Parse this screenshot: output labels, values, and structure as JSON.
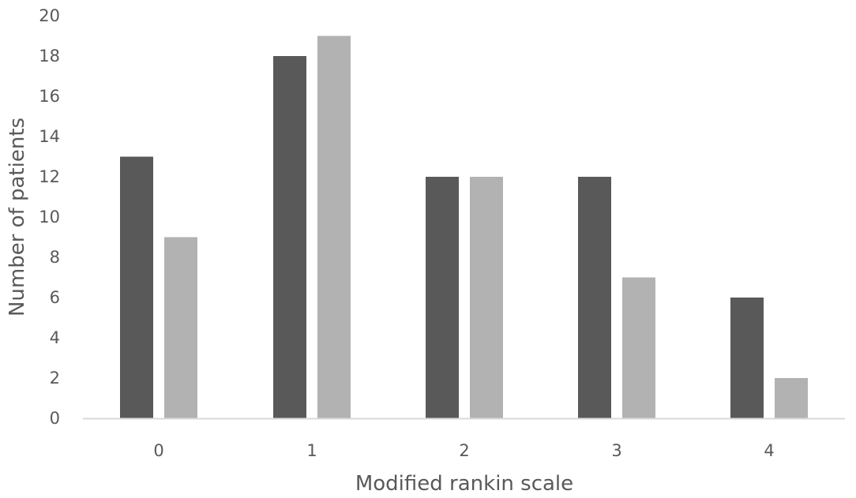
{
  "chart_data": {
    "type": "bar",
    "xlabel": "Modified rankin scale",
    "ylabel": "Number of patients",
    "categories": [
      "0",
      "1",
      "2",
      "3",
      "4"
    ],
    "series": [
      {
        "values": [
          13,
          18,
          12,
          12,
          6
        ],
        "color": "#595959"
      },
      {
        "values": [
          9,
          19,
          12,
          7,
          2
        ],
        "color": "#b2b2b2"
      }
    ],
    "ylim": [
      0,
      20
    ],
    "yticks": [
      "0",
      "2",
      "4",
      "6",
      "8",
      "10",
      "12",
      "14",
      "16",
      "18",
      "20"
    ],
    "grid": false,
    "legend": "none",
    "colors": {
      "axis_line": "#d9d9d9",
      "text": "#595959"
    }
  }
}
